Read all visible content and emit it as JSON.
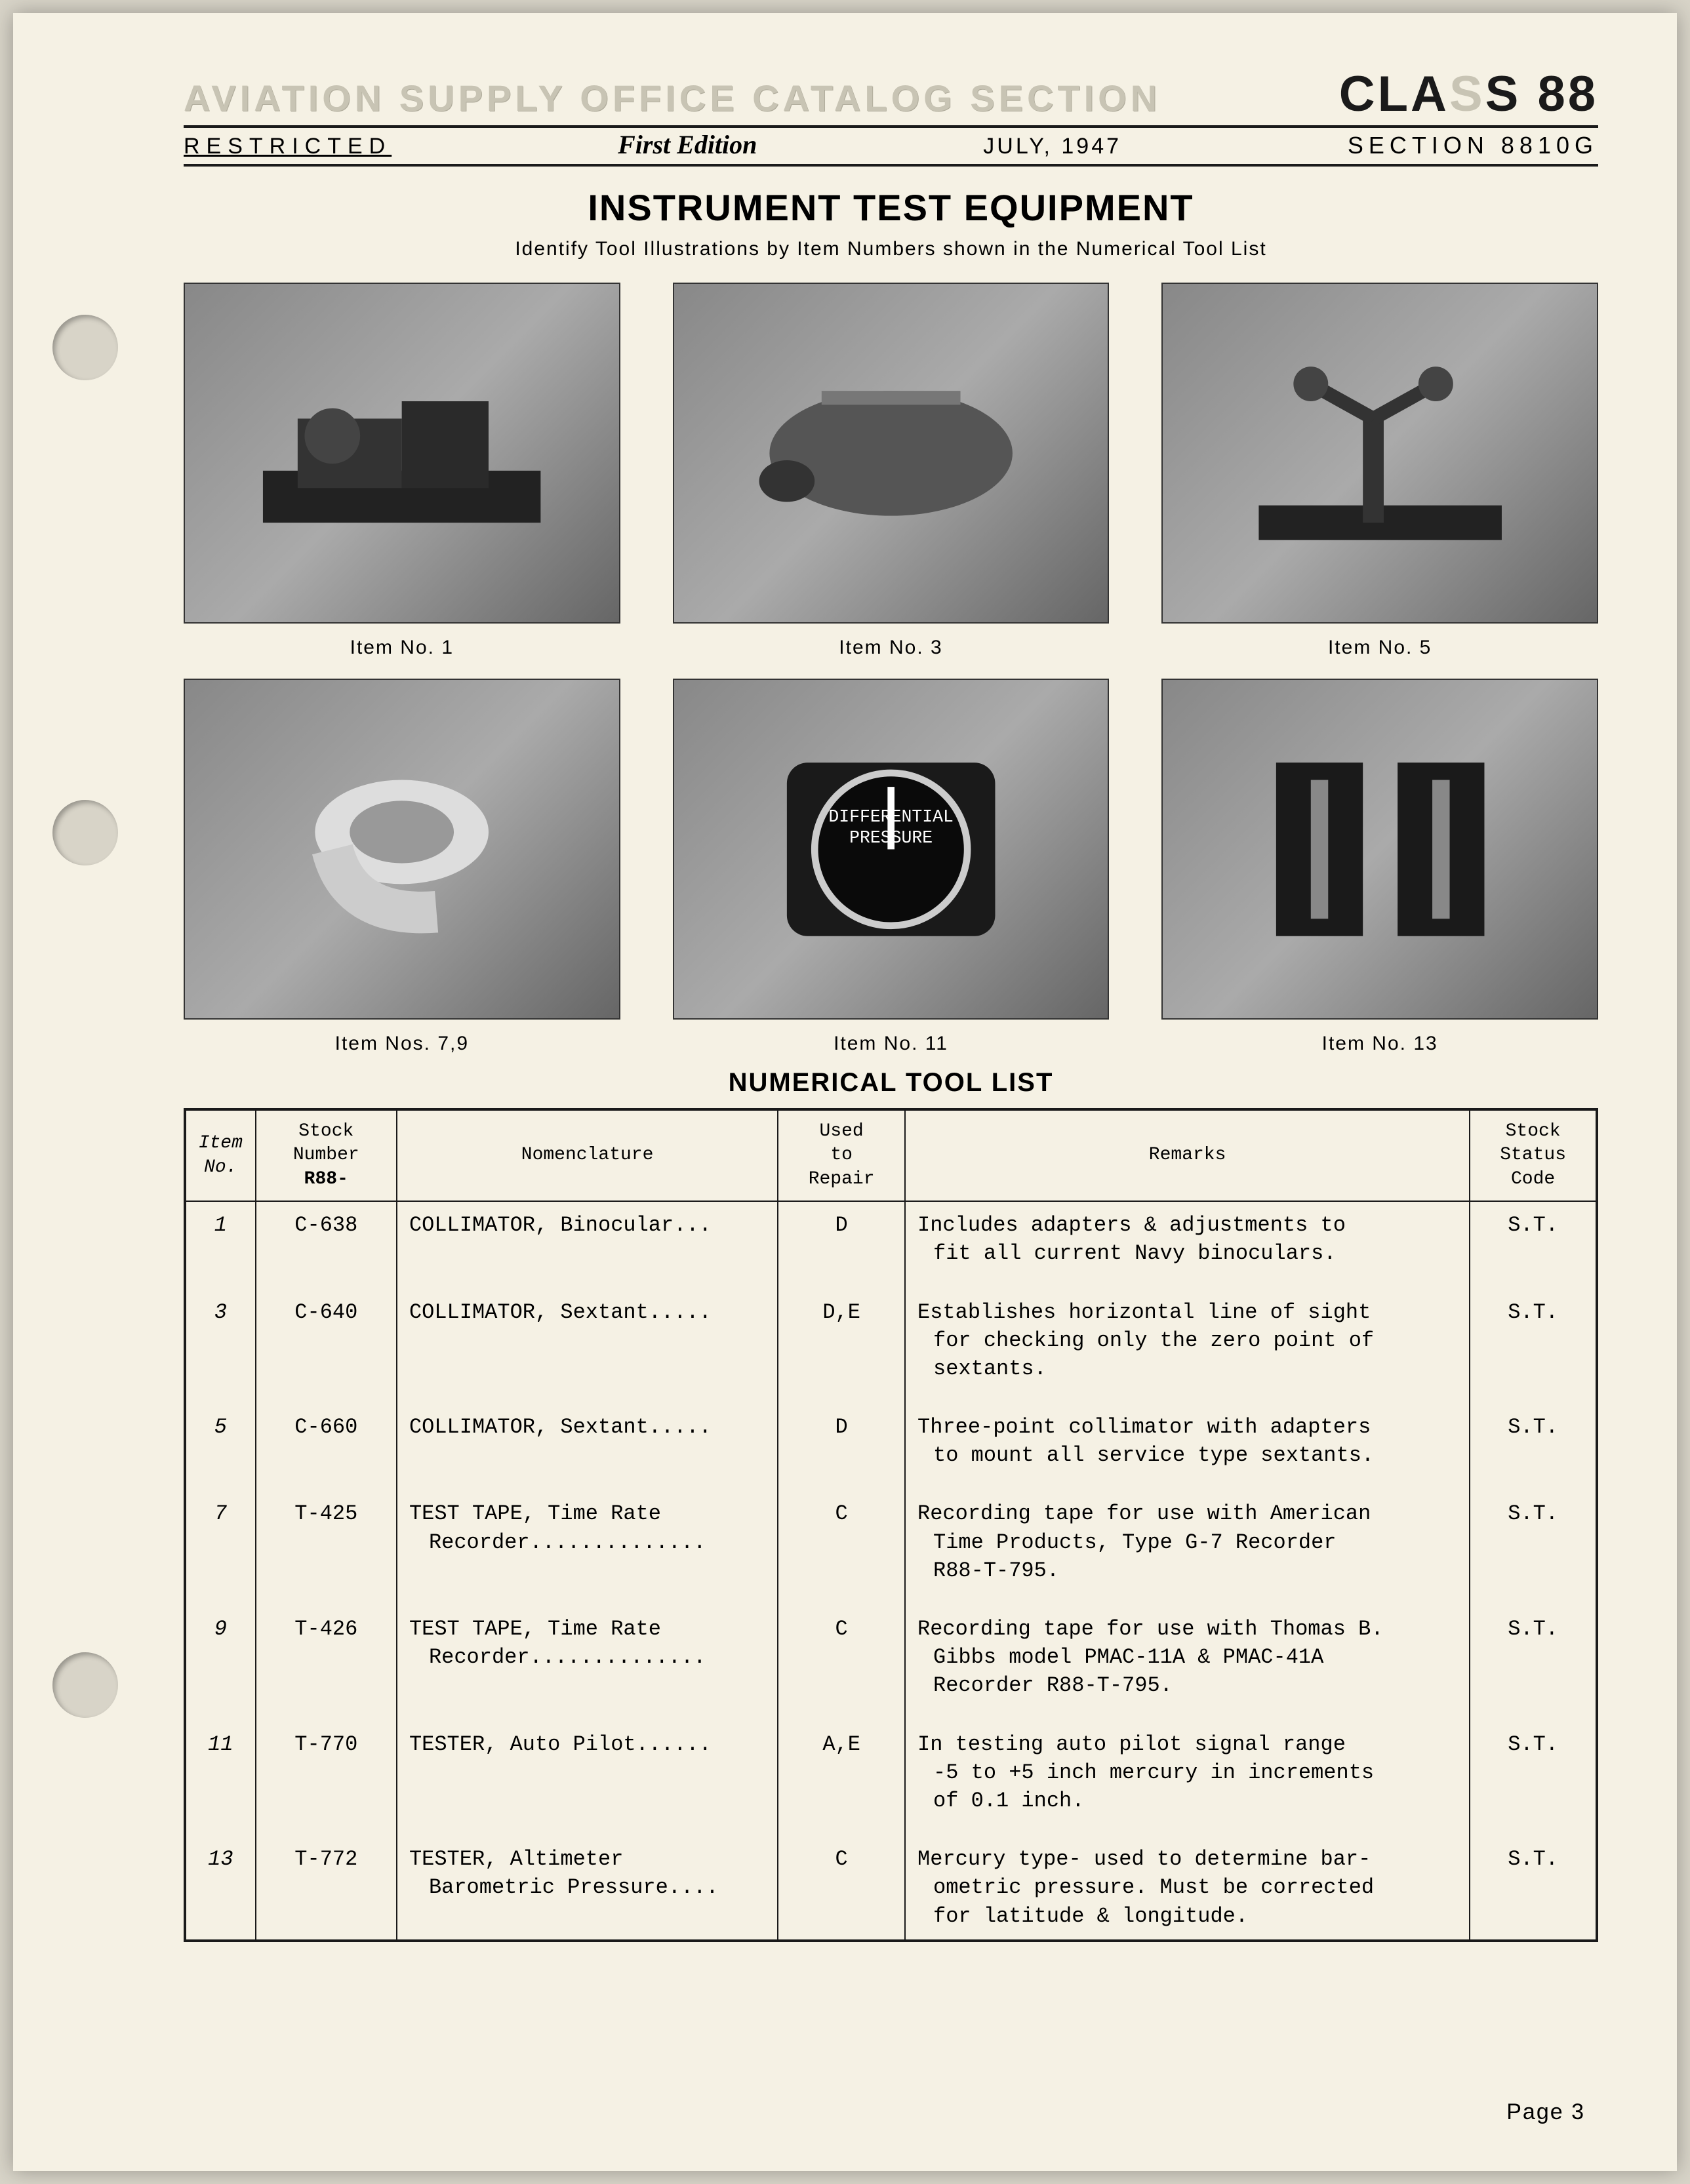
{
  "header": {
    "catalog_title": "AVIATION SUPPLY OFFICE CATALOG SECTION",
    "class_prefix": "CLA",
    "class_faint": "S",
    "class_suffix": "S 88",
    "restricted": "RESTRICTED",
    "edition": "First Edition",
    "date": "JULY, 1947",
    "section": "SECTION 8810G"
  },
  "titles": {
    "main": "INSTRUMENT TEST EQUIPMENT",
    "subtitle": "Identify Tool Illustrations by Item Numbers shown in the Numerical Tool List",
    "list": "NUMERICAL TOOL LIST"
  },
  "images": [
    {
      "caption": "Item No. 1"
    },
    {
      "caption": "Item No. 3"
    },
    {
      "caption": "Item No. 5"
    },
    {
      "caption": "Item Nos. 7,9"
    },
    {
      "caption": "Item No. 11"
    },
    {
      "caption": "Item No. 13"
    }
  ],
  "table": {
    "headers": {
      "item": "Item\nNo.",
      "stock_a": "Stock",
      "stock_b": "Number",
      "stock_c": "R88-",
      "nom": "Nomenclature",
      "used": "Used\nto\nRepair",
      "remarks": "Remarks",
      "status": "Stock\nStatus\nCode"
    },
    "rows": [
      {
        "item": "1",
        "stock": "C-638",
        "nom": "COLLIMATOR, Binocular...",
        "used": "D",
        "remarks_a": "Includes adapters & adjustments to",
        "remarks_b": "fit all current Navy binoculars.",
        "status": "S.T."
      },
      {
        "item": "3",
        "stock": "C-640",
        "nom": "COLLIMATOR, Sextant.....",
        "used": "D,E",
        "remarks_a": "Establishes horizontal line of sight",
        "remarks_b": "for checking only the zero point of",
        "remarks_c": "sextants.",
        "status": "S.T."
      },
      {
        "item": "5",
        "stock": "C-660",
        "nom": "COLLIMATOR, Sextant.....",
        "used": "D",
        "remarks_a": "Three-point collimator with adapters",
        "remarks_b": "to mount all service type sextants.",
        "status": "S.T."
      },
      {
        "item": "7",
        "stock": "T-425",
        "nom_a": "TEST TAPE, Time Rate",
        "nom_b": "Recorder..............",
        "used": "C",
        "remarks_a": "Recording tape for use with American",
        "remarks_b": "Time Products, Type G-7 Recorder",
        "remarks_c": "R88-T-795.",
        "status": "S.T."
      },
      {
        "item": "9",
        "stock": "T-426",
        "nom_a": "TEST TAPE, Time Rate",
        "nom_b": "Recorder..............",
        "used": "C",
        "remarks_a": "Recording tape for use with Thomas B.",
        "remarks_b": "Gibbs model PMAC-11A & PMAC-41A",
        "remarks_c": "Recorder R88-T-795.",
        "status": "S.T."
      },
      {
        "item": "11",
        "stock": "T-770",
        "nom": "TESTER, Auto Pilot......",
        "used": "A,E",
        "remarks_a": "In testing auto pilot signal range",
        "remarks_b": "-5 to +5 inch mercury in increments",
        "remarks_c": "of 0.1 inch.",
        "status": "S.T."
      },
      {
        "item": "13",
        "stock": "T-772",
        "nom_a": "TESTER, Altimeter",
        "nom_b": "Barometric Pressure....",
        "used": "C",
        "remarks_a": "Mercury type- used to determine bar-",
        "remarks_b": "ometric pressure. Must be corrected",
        "remarks_c": "for latitude & longitude.",
        "status": "S.T."
      }
    ]
  },
  "footer": {
    "page": "Page 3"
  },
  "colors": {
    "page_bg": "#f5f1e4",
    "ink": "#1a1a1a",
    "faint": "#c8c4b4",
    "outer_bg": "#d8d4c8"
  }
}
